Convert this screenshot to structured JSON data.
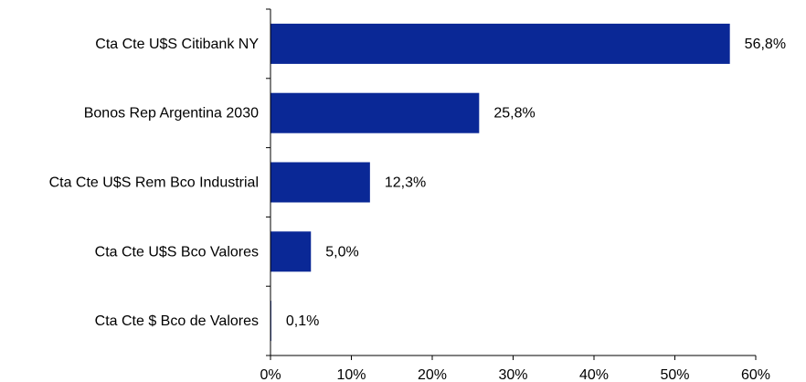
{
  "chart_data": {
    "type": "bar",
    "orientation": "horizontal",
    "title": "",
    "xlabel": "",
    "ylabel": "",
    "categories": [
      "Cta Cte U$S Citibank NY",
      "Bonos Rep Argentina 2030",
      "Cta Cte U$S Rem Bco Industrial",
      "Cta Cte U$S Bco Valores",
      "Cta Cte $ Bco de Valores"
    ],
    "values": [
      56.8,
      25.8,
      12.3,
      5.0,
      0.1
    ],
    "data_labels": [
      "56,8%",
      "25,8%",
      "12,3%",
      "5,0%",
      "0,1%"
    ],
    "xlim": [
      0,
      60
    ],
    "x_ticks": [
      0,
      10,
      20,
      30,
      40,
      50,
      60
    ],
    "x_tick_labels": [
      "0%",
      "10%",
      "20%",
      "30%",
      "40%",
      "50%",
      "60%"
    ],
    "grid": false,
    "legend": "none",
    "bar_color": "#0a2896",
    "axis_color": "#000000"
  }
}
